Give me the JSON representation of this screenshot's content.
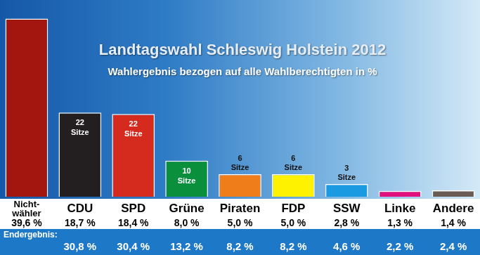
{
  "chart_data": {
    "type": "bar",
    "title": "Landtagswahl Schleswig Holstein 2012",
    "subtitle": "Wahlergebnis bezogen auf alle Wahlberechtigten in %",
    "categories": [
      "Nicht-wähler",
      "CDU",
      "SPD",
      "Grüne",
      "Piraten",
      "FDP",
      "SSW",
      "Linke",
      "Andere"
    ],
    "values": [
      39.6,
      18.7,
      18.4,
      8.0,
      5.0,
      5.0,
      2.8,
      1.3,
      1.4
    ],
    "value_labels": [
      "39,6 %",
      "18,7 %",
      "18,4 %",
      "8,0 %",
      "5,0 %",
      "5,0 %",
      "2,8 %",
      "1,3 %",
      "1,4 %"
    ],
    "data_labels": true,
    "colors": [
      "#a3160f",
      "#231f20",
      "#d52b1e",
      "#0a8f3c",
      "#ef7d1a",
      "#fff200",
      "#1a9ae0",
      "#e0107f",
      "#6b5b55"
    ],
    "ylim": [
      0,
      40
    ],
    "grid": false,
    "tick_labels": "x",
    "seats": [
      null,
      22,
      22,
      10,
      6,
      6,
      3,
      null,
      null
    ],
    "seats_label": "Sitze",
    "final_result": {
      "label": "Endergebnis:",
      "values": [
        null,
        30.8,
        30.4,
        13.2,
        8.2,
        8.2,
        4.6,
        2.2,
        2.4
      ],
      "value_labels": [
        null,
        "30,8 %",
        "30,4 %",
        "13,2 %",
        "8,2 %",
        "8,2 %",
        "4,6 %",
        "2,2 %",
        "2,4 %"
      ]
    }
  }
}
